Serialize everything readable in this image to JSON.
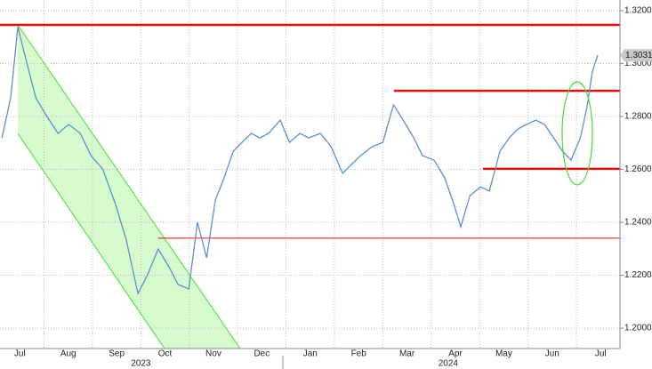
{
  "chart_data": {
    "type": "line",
    "xlim": [
      0.09,
      12.9
    ],
    "ylim": [
      1.1923,
      1.324
    ],
    "yticks": [
      {
        "value": 1.2,
        "label": "1.2000"
      },
      {
        "value": 1.22,
        "label": "1.2200"
      },
      {
        "value": 1.24,
        "label": "1.2400"
      },
      {
        "value": 1.26,
        "label": "1.2600"
      },
      {
        "value": 1.28,
        "label": "1.2800"
      },
      {
        "value": 1.3,
        "label": "1.3000"
      },
      {
        "value": 1.32,
        "label": "1.3200"
      }
    ],
    "xticks": [
      {
        "value": 0.5,
        "label": "Jul"
      },
      {
        "value": 1.5,
        "label": "Aug"
      },
      {
        "value": 2.5,
        "label": "Sep"
      },
      {
        "value": 3.5,
        "label": "Oct"
      },
      {
        "value": 4.5,
        "label": "Nov"
      },
      {
        "value": 5.5,
        "label": "Dec"
      },
      {
        "value": 6.5,
        "label": "Jan"
      },
      {
        "value": 7.5,
        "label": "Feb"
      },
      {
        "value": 8.5,
        "label": "Mar"
      },
      {
        "value": 9.5,
        "label": "Apr"
      },
      {
        "value": 10.5,
        "label": "May"
      },
      {
        "value": 11.5,
        "label": "Jun"
      },
      {
        "value": 12.5,
        "label": "Jul"
      }
    ],
    "year_labels": [
      {
        "value": 3.0,
        "label": "2023"
      },
      {
        "value": 9.35,
        "label": "2024"
      }
    ],
    "grid": true,
    "series": [
      {
        "color": "#5b8fd0",
        "x": [
          0.13,
          0.31,
          0.46,
          0.64,
          0.83,
          1.05,
          1.29,
          1.51,
          1.75,
          1.97,
          2.21,
          2.48,
          2.7,
          2.94,
          3.13,
          3.36,
          3.58,
          3.77,
          3.99,
          4.17,
          4.36,
          4.54,
          4.72,
          4.91,
          5.09,
          5.28,
          5.46,
          5.64,
          5.88,
          6.07,
          6.29,
          6.47,
          6.71,
          6.93,
          7.17,
          7.35,
          7.54,
          7.78,
          8.0,
          8.22,
          8.42,
          8.64,
          8.82,
          9.06,
          9.28,
          9.47,
          9.61,
          9.8,
          10.02,
          10.2,
          10.42,
          10.61,
          10.79,
          10.97,
          11.16,
          11.34,
          11.53,
          11.71,
          11.89,
          12.08,
          12.22,
          12.33,
          12.44
        ],
        "values": [
          1.2719,
          1.287,
          1.3139,
          1.3005,
          1.287,
          1.2803,
          1.2736,
          1.277,
          1.2736,
          1.2652,
          1.2602,
          1.2467,
          1.2333,
          1.2131,
          1.2198,
          1.2299,
          1.2232,
          1.2165,
          1.2148,
          1.24,
          1.2266,
          1.2484,
          1.2568,
          1.2669,
          1.2702,
          1.2736,
          1.2719,
          1.2736,
          1.2786,
          1.2702,
          1.2736,
          1.2719,
          1.2736,
          1.2686,
          1.2585,
          1.2618,
          1.2652,
          1.2686,
          1.2702,
          1.2844,
          1.2786,
          1.2719,
          1.2652,
          1.2635,
          1.2568,
          1.2467,
          1.2383,
          1.2501,
          1.2534,
          1.2518,
          1.2669,
          1.2719,
          1.2753,
          1.277,
          1.2786,
          1.277,
          1.2719,
          1.2669,
          1.2635,
          1.2719,
          1.2837,
          1.2971,
          1.3031
        ]
      }
    ],
    "last_price": {
      "value": 1.3031,
      "color": "#c8c8c8"
    },
    "levels": [
      {
        "value": 1.3146,
        "x_start": 0.09,
        "color": "#e01010",
        "width": 2.5
      },
      {
        "value": 1.2897,
        "x_start": 8.23,
        "color": "#e01010",
        "width": 2.5
      },
      {
        "value": 1.2602,
        "x_start": 10.07,
        "color": "#e01010",
        "width": 2.5
      },
      {
        "value": 1.234,
        "x_start": 3.36,
        "color": "#e01010",
        "width": 1
      }
    ]
  }
}
